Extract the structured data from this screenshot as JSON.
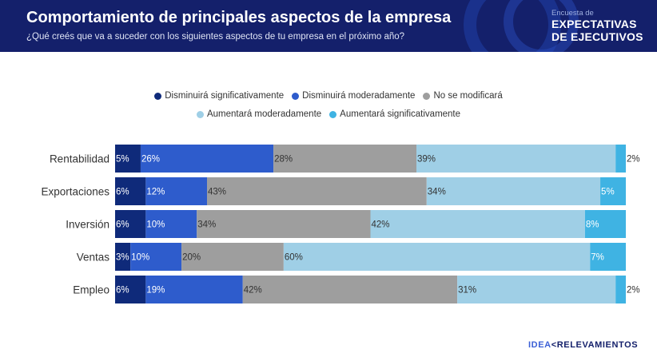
{
  "header": {
    "title": "Comportamiento de principales aspectos de la empresa",
    "subtitle": "¿Qué creés que va a suceder con los siguientes aspectos de tu empresa en el próximo año?",
    "survey_small": "Encuesta de",
    "survey_line1": "EXPECTATIVAS",
    "survey_line2": "DE EJECUTIVOS",
    "colors": {
      "background": "#14206b"
    }
  },
  "logo": {
    "part1": "IDEA",
    "glyph": "<",
    "part2": "RELEVAMIENTOS"
  },
  "chart_data": {
    "type": "bar",
    "orientation": "horizontal",
    "stacked": true,
    "percent_stacked": true,
    "legend_placement": "top",
    "grid": false,
    "categories": [
      "Rentabilidad",
      "Exportaciones",
      "Inversión",
      "Ventas",
      "Empleo"
    ],
    "series": [
      {
        "name": "Disminuirá significativamente",
        "color": "#0f2a7a",
        "values": [
          5,
          6,
          6,
          3,
          6
        ]
      },
      {
        "name": "Disminuirá moderadamente",
        "color": "#2e5ccc",
        "values": [
          26,
          12,
          10,
          10,
          19
        ]
      },
      {
        "name": "No se modificará",
        "color": "#9e9e9e",
        "values": [
          28,
          43,
          34,
          20,
          42
        ]
      },
      {
        "name": "Aumentará moderadamente",
        "color": "#9fcfe6",
        "values": [
          39,
          34,
          42,
          60,
          31
        ]
      },
      {
        "name": "Aumentará significativamente",
        "color": "#3fb3e3",
        "values": [
          2,
          5,
          8,
          7,
          2
        ]
      }
    ]
  }
}
